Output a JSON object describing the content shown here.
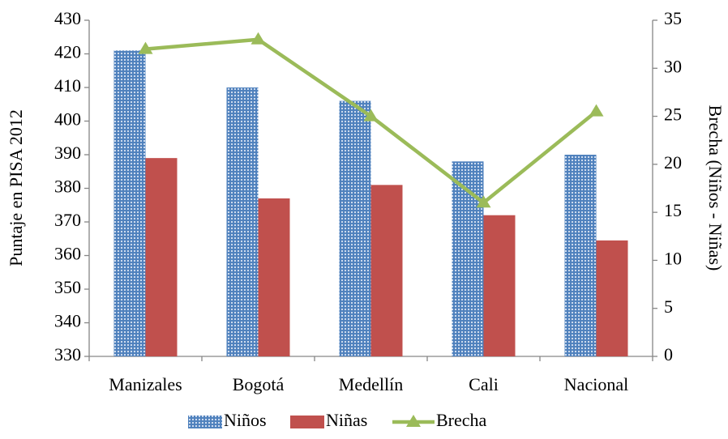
{
  "chart_data": {
    "type": "bar_line",
    "categories": [
      "Manizales",
      "Bogotá",
      "Medellín",
      "Cali",
      "Nacional"
    ],
    "series": [
      {
        "name": "Niños",
        "color": "#4f81bd",
        "values": [
          421,
          410,
          406,
          388,
          390
        ]
      },
      {
        "name": "Niñas",
        "color": "#c0504d",
        "values": [
          389,
          377,
          381,
          372,
          364.5
        ]
      },
      {
        "name": "Brecha",
        "color": "#9bbb59",
        "values": [
          32,
          33,
          25,
          16,
          25.5
        ],
        "axis": "y2"
      }
    ],
    "ylabel": "Puntaje en PISA 2012",
    "y2label": "Brecha (Niños - Niñas)",
    "ylim": [
      330,
      430
    ],
    "yticks": [
      330,
      340,
      350,
      360,
      370,
      380,
      390,
      400,
      410,
      420,
      430
    ],
    "y2lim": [
      0,
      35
    ],
    "y2ticks": [
      0,
      5,
      10,
      15,
      20,
      25,
      30,
      35
    ],
    "grid": false,
    "legend": "bottom"
  }
}
